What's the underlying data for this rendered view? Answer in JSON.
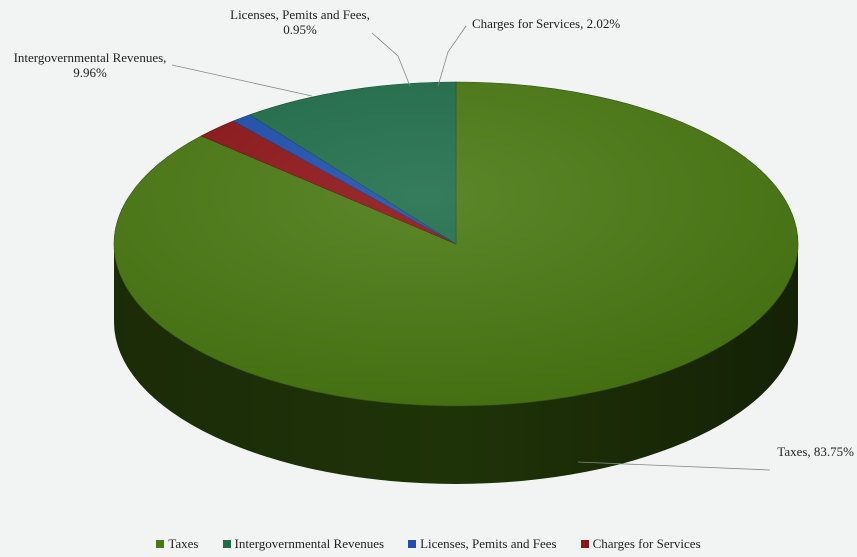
{
  "chart_data": {
    "type": "pie",
    "title": "",
    "categories": [
      "Taxes",
      "Intergovernmental Revenues",
      "Licenses, Pemits and Fees",
      "Charges for Services"
    ],
    "values": [
      83.75,
      9.96,
      0.95,
      2.02
    ],
    "data_labels": [
      "Taxes, 83.75%",
      "Intergovernmental Revenues,|9.96%",
      "Licenses, Pemits and Fees,|0.95%",
      "Charges for Services, 2.02%"
    ],
    "colors": [
      "#4a7a12",
      "#1f6e4a",
      "#1d4fb0",
      "#8e1418"
    ],
    "three_d": true,
    "legend_position": "bottom"
  }
}
